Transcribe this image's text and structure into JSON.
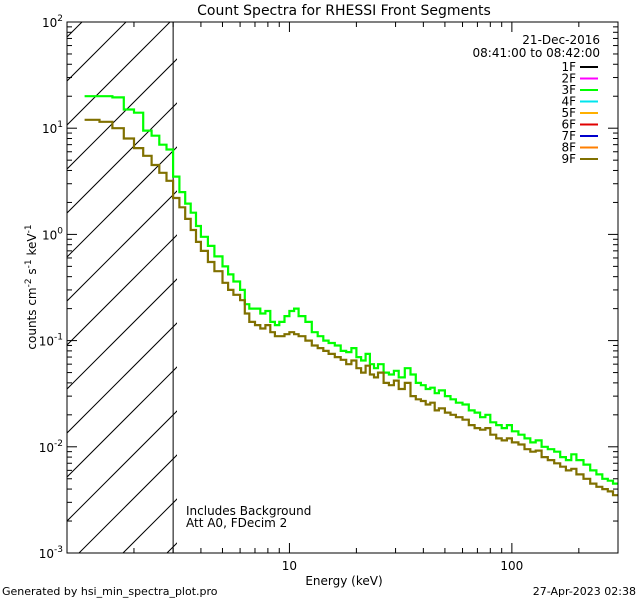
{
  "chart_data": {
    "type": "line",
    "title": "Count Spectra for RHESSI Front Segments",
    "xlabel": "Energy (keV)",
    "ylabel_parts": [
      "counts cm",
      "-2",
      " s",
      "-1",
      " keV",
      "-1"
    ],
    "x_scale": "log",
    "y_scale": "log",
    "xlim": [
      1.0,
      300
    ],
    "ylim": [
      0.001,
      100
    ],
    "x_tick_labels": [
      {
        "value": 10,
        "label": "10"
      },
      {
        "value": 100,
        "label": "100"
      }
    ],
    "y_tick_labels": [
      {
        "value": 100,
        "base": "10",
        "exp": "2"
      },
      {
        "value": 10,
        "base": "10",
        "exp": "1"
      },
      {
        "value": 1,
        "base": "10",
        "exp": "0"
      },
      {
        "value": 0.1,
        "base": "10",
        "exp": "-1"
      },
      {
        "value": 0.01,
        "base": "10",
        "exp": "-2"
      },
      {
        "value": 0.001,
        "base": "10",
        "exp": "-3"
      }
    ],
    "hatched_region": {
      "from_energy": 1.0,
      "to_energy": 3.0
    },
    "date": "21-Dec-2016",
    "time_range": "08:41:00 to 08:42:00",
    "legend": [
      {
        "label": "1F",
        "color": "#000000"
      },
      {
        "label": "2F",
        "color": "#ff00ff"
      },
      {
        "label": "3F",
        "color": "#00ff00"
      },
      {
        "label": "4F",
        "color": "#00e5ee"
      },
      {
        "label": "5F",
        "color": "#ffb000"
      },
      {
        "label": "6F",
        "color": "#e00000"
      },
      {
        "label": "7F",
        "color": "#0000cc"
      },
      {
        "label": "8F",
        "color": "#ff7f00"
      },
      {
        "label": "9F",
        "color": "#807000"
      }
    ],
    "annotation_lines": [
      "Includes Background",
      "Att A0, FDecim 2"
    ],
    "series": [
      {
        "name": "3F",
        "color": "#00ff00",
        "points": [
          [
            1.2,
            20
          ],
          [
            1.4,
            20
          ],
          [
            1.6,
            19.5
          ],
          [
            1.8,
            15
          ],
          [
            2.0,
            14
          ],
          [
            2.2,
            9.5
          ],
          [
            2.4,
            8.5
          ],
          [
            2.6,
            7.0
          ],
          [
            2.8,
            6.3
          ],
          [
            3.0,
            3.5
          ],
          [
            3.2,
            2.5
          ],
          [
            3.4,
            1.95
          ],
          [
            3.6,
            1.6
          ],
          [
            3.8,
            1.2
          ],
          [
            4.0,
            0.95
          ],
          [
            4.3,
            0.78
          ],
          [
            4.6,
            0.62
          ],
          [
            5.0,
            0.5
          ],
          [
            5.3,
            0.42
          ],
          [
            5.6,
            0.36
          ],
          [
            6.0,
            0.3
          ],
          [
            6.3,
            0.22
          ],
          [
            6.6,
            0.2
          ],
          [
            7.0,
            0.2
          ],
          [
            7.4,
            0.18
          ],
          [
            7.8,
            0.19
          ],
          [
            8.2,
            0.15
          ],
          [
            8.6,
            0.14
          ],
          [
            9.0,
            0.15
          ],
          [
            9.5,
            0.17
          ],
          [
            10.0,
            0.19
          ],
          [
            10.5,
            0.2
          ],
          [
            11.0,
            0.17
          ],
          [
            11.8,
            0.15
          ],
          [
            12.6,
            0.12
          ],
          [
            13.4,
            0.11
          ],
          [
            14.2,
            0.1
          ],
          [
            15.0,
            0.095
          ],
          [
            16.0,
            0.09
          ],
          [
            17.0,
            0.08
          ],
          [
            18.0,
            0.078
          ],
          [
            19.0,
            0.085
          ],
          [
            20.0,
            0.07
          ],
          [
            21.0,
            0.065
          ],
          [
            22.0,
            0.075
          ],
          [
            23.0,
            0.06
          ],
          [
            24.0,
            0.055
          ],
          [
            25.0,
            0.06
          ],
          [
            26.5,
            0.05
          ],
          [
            28.0,
            0.048
          ],
          [
            29.5,
            0.052
          ],
          [
            31.0,
            0.045
          ],
          [
            33.0,
            0.055
          ],
          [
            35.0,
            0.048
          ],
          [
            37.0,
            0.04
          ],
          [
            39.0,
            0.038
          ],
          [
            41.0,
            0.035
          ],
          [
            43.0,
            0.036
          ],
          [
            45.0,
            0.032
          ],
          [
            47.0,
            0.034
          ],
          [
            50.0,
            0.03
          ],
          [
            53.0,
            0.028
          ],
          [
            56.0,
            0.026
          ],
          [
            60.0,
            0.025
          ],
          [
            64.0,
            0.022
          ],
          [
            68.0,
            0.021
          ],
          [
            72.0,
            0.019
          ],
          [
            76.0,
            0.02
          ],
          [
            80.0,
            0.017
          ],
          [
            85.0,
            0.016
          ],
          [
            90.0,
            0.015
          ],
          [
            95.0,
            0.016
          ],
          [
            100.0,
            0.014
          ],
          [
            107.0,
            0.013
          ],
          [
            114.0,
            0.012
          ],
          [
            121.0,
            0.011
          ],
          [
            128.0,
            0.0115
          ],
          [
            136.0,
            0.01
          ],
          [
            145.0,
            0.0095
          ],
          [
            155.0,
            0.009
          ],
          [
            165.0,
            0.008
          ],
          [
            175.0,
            0.0075
          ],
          [
            185.0,
            0.0085
          ],
          [
            195.0,
            0.0075
          ],
          [
            210.0,
            0.0068
          ],
          [
            225.0,
            0.006
          ],
          [
            240.0,
            0.0055
          ],
          [
            255.0,
            0.005
          ],
          [
            270.0,
            0.0048
          ],
          [
            285.0,
            0.0045
          ],
          [
            300.0,
            0.0045
          ]
        ]
      },
      {
        "name": "9F",
        "color": "#807000",
        "points": [
          [
            1.2,
            12
          ],
          [
            1.4,
            11.5
          ],
          [
            1.6,
            10
          ],
          [
            1.8,
            8.0
          ],
          [
            2.0,
            6.5
          ],
          [
            2.2,
            5.5
          ],
          [
            2.4,
            4.5
          ],
          [
            2.6,
            3.8
          ],
          [
            2.8,
            3.2
          ],
          [
            3.0,
            2.2
          ],
          [
            3.2,
            1.8
          ],
          [
            3.4,
            1.4
          ],
          [
            3.6,
            1.1
          ],
          [
            3.8,
            0.85
          ],
          [
            4.0,
            0.7
          ],
          [
            4.3,
            0.55
          ],
          [
            4.6,
            0.45
          ],
          [
            5.0,
            0.35
          ],
          [
            5.3,
            0.3
          ],
          [
            5.6,
            0.27
          ],
          [
            6.0,
            0.24
          ],
          [
            6.3,
            0.18
          ],
          [
            6.6,
            0.15
          ],
          [
            7.0,
            0.14
          ],
          [
            7.4,
            0.13
          ],
          [
            7.8,
            0.14
          ],
          [
            8.2,
            0.12
          ],
          [
            8.6,
            0.11
          ],
          [
            9.0,
            0.11
          ],
          [
            9.5,
            0.115
          ],
          [
            10.0,
            0.12
          ],
          [
            10.5,
            0.115
          ],
          [
            11.0,
            0.11
          ],
          [
            11.8,
            0.1
          ],
          [
            12.6,
            0.09
          ],
          [
            13.4,
            0.085
          ],
          [
            14.2,
            0.08
          ],
          [
            15.0,
            0.075
          ],
          [
            16.0,
            0.07
          ],
          [
            17.0,
            0.066
          ],
          [
            18.0,
            0.06
          ],
          [
            19.0,
            0.065
          ],
          [
            20.0,
            0.055
          ],
          [
            21.0,
            0.05
          ],
          [
            22.0,
            0.058
          ],
          [
            23.0,
            0.048
          ],
          [
            24.0,
            0.045
          ],
          [
            25.0,
            0.05
          ],
          [
            26.5,
            0.04
          ],
          [
            28.0,
            0.038
          ],
          [
            29.5,
            0.042
          ],
          [
            31.0,
            0.035
          ],
          [
            33.0,
            0.04
          ],
          [
            35.0,
            0.03
          ],
          [
            37.0,
            0.028
          ],
          [
            39.0,
            0.027
          ],
          [
            41.0,
            0.025
          ],
          [
            43.0,
            0.026
          ],
          [
            45.0,
            0.022
          ],
          [
            47.0,
            0.023
          ],
          [
            50.0,
            0.021
          ],
          [
            53.0,
            0.02
          ],
          [
            56.0,
            0.019
          ],
          [
            60.0,
            0.018
          ],
          [
            64.0,
            0.016
          ],
          [
            68.0,
            0.015
          ],
          [
            72.0,
            0.0145
          ],
          [
            76.0,
            0.015
          ],
          [
            80.0,
            0.013
          ],
          [
            85.0,
            0.012
          ],
          [
            90.0,
            0.0115
          ],
          [
            95.0,
            0.012
          ],
          [
            100.0,
            0.011
          ],
          [
            107.0,
            0.0105
          ],
          [
            114.0,
            0.0095
          ],
          [
            121.0,
            0.009
          ],
          [
            128.0,
            0.0092
          ],
          [
            136.0,
            0.008
          ],
          [
            145.0,
            0.0075
          ],
          [
            155.0,
            0.007
          ],
          [
            165.0,
            0.0065
          ],
          [
            175.0,
            0.006
          ],
          [
            185.0,
            0.0062
          ],
          [
            195.0,
            0.0055
          ],
          [
            210.0,
            0.005
          ],
          [
            225.0,
            0.0045
          ],
          [
            240.0,
            0.0042
          ],
          [
            255.0,
            0.004
          ],
          [
            270.0,
            0.0038
          ],
          [
            285.0,
            0.0035
          ],
          [
            300.0,
            0.0035
          ]
        ]
      }
    ]
  },
  "footer": {
    "left": "Generated by hsi_min_spectra_plot.pro",
    "right": "27-Apr-2023 02:38"
  }
}
